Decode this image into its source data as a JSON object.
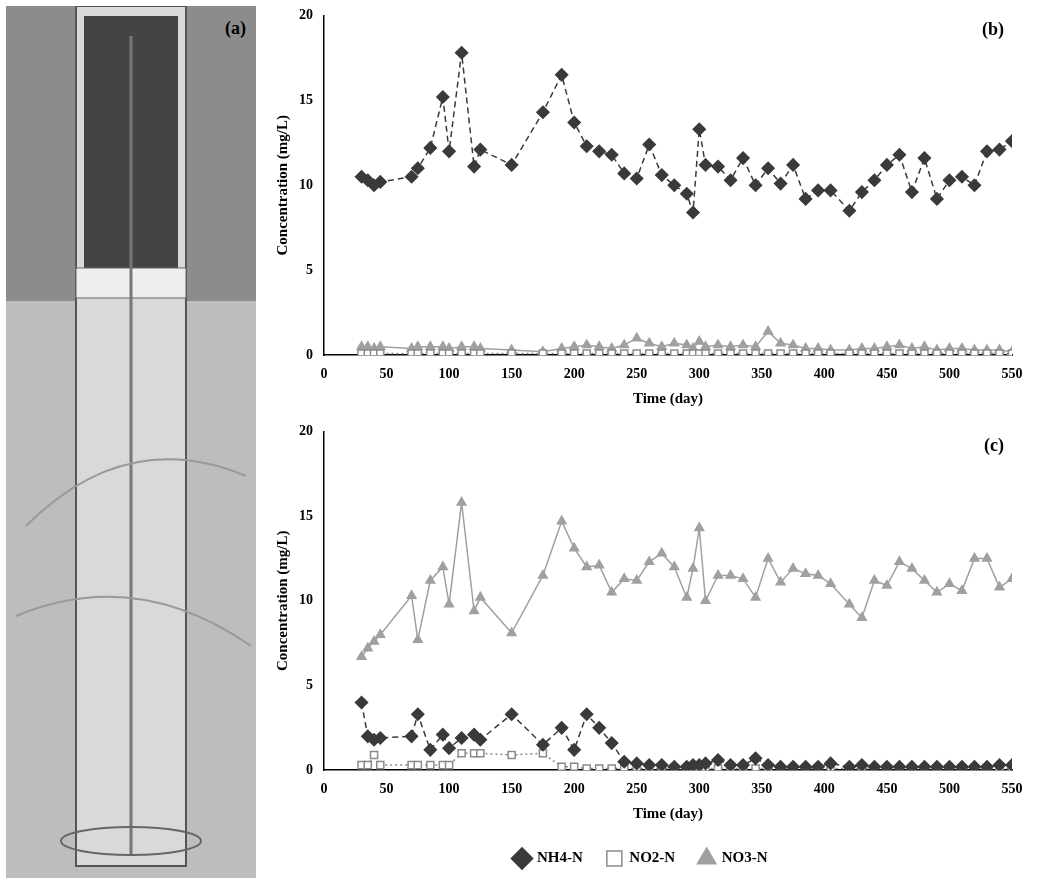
{
  "image_label": "(a)",
  "chart_data": [
    {
      "type": "line",
      "panel": "(b)",
      "x_label": "Time (day)",
      "y_label": "Concentration (mg/L)",
      "xlim": [
        0,
        550
      ],
      "xticks": [
        0,
        50,
        100,
        150,
        200,
        250,
        300,
        350,
        400,
        450,
        500,
        550
      ],
      "ylim": [
        0,
        20
      ],
      "yticks": [
        0,
        5,
        10,
        15,
        20
      ],
      "grid": false,
      "legend": "none",
      "x": [
        30,
        35,
        40,
        45,
        70,
        75,
        85,
        95,
        100,
        110,
        120,
        125,
        150,
        175,
        190,
        200,
        210,
        220,
        230,
        240,
        250,
        260,
        270,
        280,
        290,
        295,
        300,
        305,
        315,
        325,
        335,
        345,
        355,
        365,
        375,
        385,
        395,
        405,
        420,
        430,
        440,
        450,
        460,
        470,
        480,
        490,
        500,
        510,
        520,
        530,
        540,
        550
      ],
      "series": [
        {
          "name": "NH4-N",
          "color": "#3a3a3a",
          "marker": "diamond",
          "line_style": "dashed",
          "values": [
            10.5,
            10.3,
            10,
            10.2,
            10.5,
            11,
            12.2,
            15.2,
            12,
            17.8,
            11.1,
            12.1,
            11.2,
            14.3,
            16.5,
            13.7,
            12.3,
            12,
            11.8,
            10.7,
            10.4,
            12.4,
            10.6,
            10,
            9.5,
            8.4,
            13.3,
            11.2,
            11.1,
            10.3,
            11.6,
            10,
            11,
            10.1,
            11.2,
            9.2,
            9.7,
            9.7,
            8.5,
            9.6,
            10.3,
            11.2,
            11.8,
            9.6,
            11.6,
            9.2,
            10.3,
            10.5,
            10,
            12,
            12.1,
            12.6
          ]
        },
        {
          "name": "NO2-N",
          "color": "#8a8a8a",
          "marker": "open_square",
          "line_style": "dotted",
          "values": [
            0.1,
            0.1,
            0.1,
            0.1,
            0.1,
            0.1,
            0.1,
            0.1,
            0.1,
            0.1,
            0.1,
            0.1,
            0.1,
            0.1,
            0.1,
            0.1,
            0.1,
            0.1,
            0.1,
            0.1,
            0.1,
            0.1,
            0.1,
            0.1,
            0.1,
            0.1,
            0.1,
            0.1,
            0.1,
            0.1,
            0.1,
            0.1,
            0.1,
            0.1,
            0.1,
            0.1,
            0.1,
            0.1,
            0.1,
            0.1,
            0.1,
            0.1,
            0.1,
            0.1,
            0.1,
            0.1,
            0.1,
            0.1,
            0.1,
            0.1,
            0.1,
            0.1
          ]
        },
        {
          "name": "NO3-N",
          "color": "#a0a0a0",
          "marker": "triangle",
          "line_style": "solid",
          "values": [
            0.5,
            0.5,
            0.4,
            0.5,
            0.4,
            0.5,
            0.5,
            0.5,
            0.4,
            0.5,
            0.5,
            0.4,
            0.3,
            0.2,
            0.4,
            0.5,
            0.6,
            0.5,
            0.4,
            0.6,
            1.0,
            0.7,
            0.5,
            0.7,
            0.6,
            0.4,
            0.8,
            0.5,
            0.6,
            0.5,
            0.6,
            0.5,
            1.4,
            0.7,
            0.6,
            0.4,
            0.4,
            0.3,
            0.3,
            0.4,
            0.4,
            0.5,
            0.6,
            0.4,
            0.5,
            0.3,
            0.4,
            0.4,
            0.3,
            0.3,
            0.3,
            0.2
          ]
        }
      ]
    },
    {
      "type": "line",
      "panel": "(c)",
      "x_label": "Time (day)",
      "y_label": "Concentration (mg/L)",
      "xlim": [
        0,
        550
      ],
      "xticks": [
        0,
        50,
        100,
        150,
        200,
        250,
        300,
        350,
        400,
        450,
        500,
        550
      ],
      "ylim": [
        0,
        20
      ],
      "yticks": [
        0,
        5,
        10,
        15,
        20
      ],
      "grid": false,
      "legend": "bottom",
      "x": [
        30,
        35,
        40,
        45,
        70,
        75,
        85,
        95,
        100,
        110,
        120,
        125,
        150,
        175,
        190,
        200,
        210,
        220,
        230,
        240,
        250,
        260,
        270,
        280,
        290,
        295,
        300,
        305,
        315,
        325,
        335,
        345,
        355,
        365,
        375,
        385,
        395,
        405,
        420,
        430,
        440,
        450,
        460,
        470,
        480,
        490,
        500,
        510,
        520,
        530,
        540,
        550
      ],
      "series": [
        {
          "name": "NH4-N",
          "color": "#3a3a3a",
          "marker": "diamond",
          "line_style": "dashed",
          "values": [
            4,
            2,
            1.8,
            1.9,
            2,
            3.3,
            1.2,
            2.1,
            1.3,
            1.9,
            2.1,
            1.8,
            3.3,
            1.5,
            2.5,
            1.2,
            3.3,
            2.5,
            1.6,
            0.5,
            0.4,
            0.3,
            0.3,
            0.2,
            0.2,
            0.3,
            0.3,
            0.4,
            0.6,
            0.3,
            0.3,
            0.7,
            0.3,
            0.2,
            0.2,
            0.2,
            0.2,
            0.4,
            0.2,
            0.3,
            0.2,
            0.2,
            0.2,
            0.2,
            0.2,
            0.2,
            0.2,
            0.2,
            0.2,
            0.2,
            0.3,
            0.3
          ]
        },
        {
          "name": "NO2-N",
          "color": "#8a8a8a",
          "marker": "open_square",
          "line_style": "dotted",
          "values": [
            0.3,
            0.3,
            0.9,
            0.3,
            0.3,
            0.3,
            0.3,
            0.3,
            0.3,
            1,
            1,
            1,
            0.9,
            1,
            0.2,
            0.2,
            0.1,
            0.1,
            0.1,
            0.1,
            0.1,
            0.1,
            0.1,
            0.1,
            0.1,
            0.1,
            0.1,
            0.1,
            0.1,
            0.1,
            0.1,
            0.1,
            0.1,
            0.1,
            0.1,
            0.1,
            0.1,
            0.1,
            0.1,
            0.1,
            0.1,
            0.1,
            0.1,
            0.1,
            0.1,
            0.1,
            0.1,
            0.1,
            0.1,
            0.1,
            0.1,
            0.1
          ]
        },
        {
          "name": "NO3-N",
          "color": "#a0a0a0",
          "marker": "triangle",
          "line_style": "solid",
          "values": [
            6.7,
            7.2,
            7.6,
            8,
            10.3,
            7.7,
            11.2,
            12,
            9.8,
            15.8,
            9.4,
            10.2,
            8.1,
            11.5,
            14.7,
            13.1,
            12,
            12.1,
            10.5,
            11.3,
            11.2,
            12.3,
            12.8,
            12,
            10.2,
            11.9,
            14.3,
            10,
            11.5,
            11.5,
            11.3,
            10.2,
            12.5,
            11.1,
            11.9,
            11.6,
            11.5,
            11,
            9.8,
            9,
            11.2,
            10.9,
            12.3,
            11.9,
            11.2,
            10.5,
            11,
            10.6,
            12.5,
            12.5,
            10.8,
            11.3
          ]
        }
      ]
    }
  ]
}
